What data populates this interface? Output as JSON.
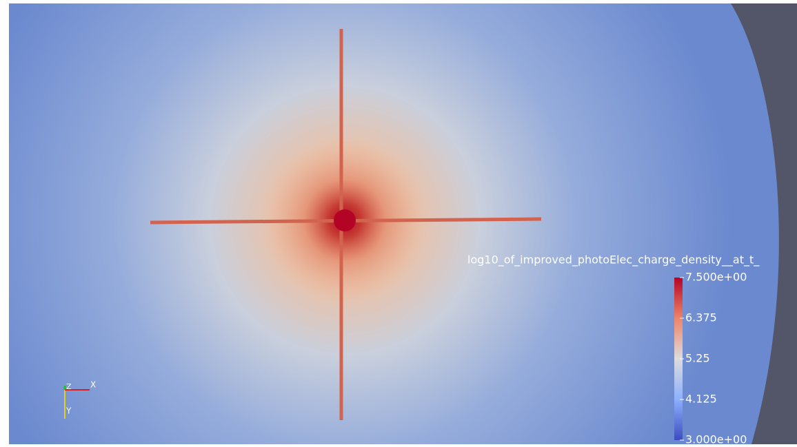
{
  "colorbar": {
    "title": "log10_of_improved_photoElec_charge_density__at_t_",
    "range": [
      3,
      7.5
    ],
    "ticks": [
      {
        "value": 7.5,
        "label": "7.500e+00"
      },
      6.375,
      5.25,
      4.125,
      {
        "value": 3,
        "label": "3.000e+00"
      }
    ]
  },
  "orientation_axes": {
    "x": "X",
    "y": "Y",
    "z": "Z"
  }
}
